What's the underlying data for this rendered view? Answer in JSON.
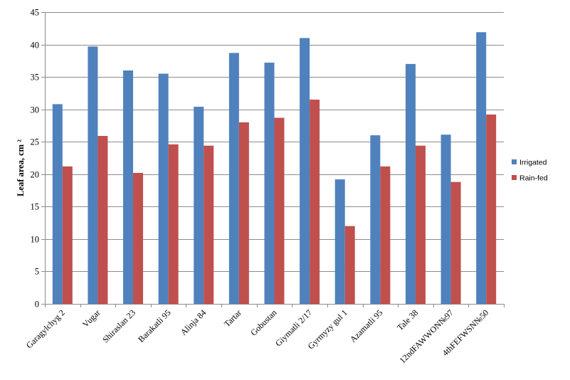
{
  "chart_data": {
    "type": "bar",
    "title": "",
    "xlabel": "",
    "ylabel": "Leaf area, cm ²",
    "ylim": [
      0,
      45
    ],
    "yticks": [
      0,
      5,
      10,
      15,
      20,
      25,
      30,
      35,
      40,
      45
    ],
    "grid": true,
    "legend_position": "right",
    "categories": [
      "Garagylchyg 2",
      "Vugar",
      "Shiraslan 23",
      "Barakatli 95",
      "Alinja 84",
      "Tartar",
      "Gobustan",
      "Giymatli 2/17",
      "Gyrmyzy gul 1",
      "Azamatli 95",
      "Tale 38",
      "12ndFAWWON№97",
      "4thFEFWSN№50"
    ],
    "series": [
      {
        "name": "Irrigated",
        "color": "#4F81BD",
        "values": [
          30.8,
          39.7,
          36.0,
          35.5,
          30.4,
          38.7,
          37.2,
          41.0,
          19.2,
          26.0,
          37.0,
          26.1,
          41.9
        ]
      },
      {
        "name": "Rain-fed",
        "color": "#C0504D",
        "values": [
          21.2,
          25.9,
          20.2,
          24.6,
          24.4,
          28.0,
          28.7,
          31.5,
          12.0,
          21.2,
          24.4,
          18.8,
          29.2
        ]
      }
    ]
  }
}
